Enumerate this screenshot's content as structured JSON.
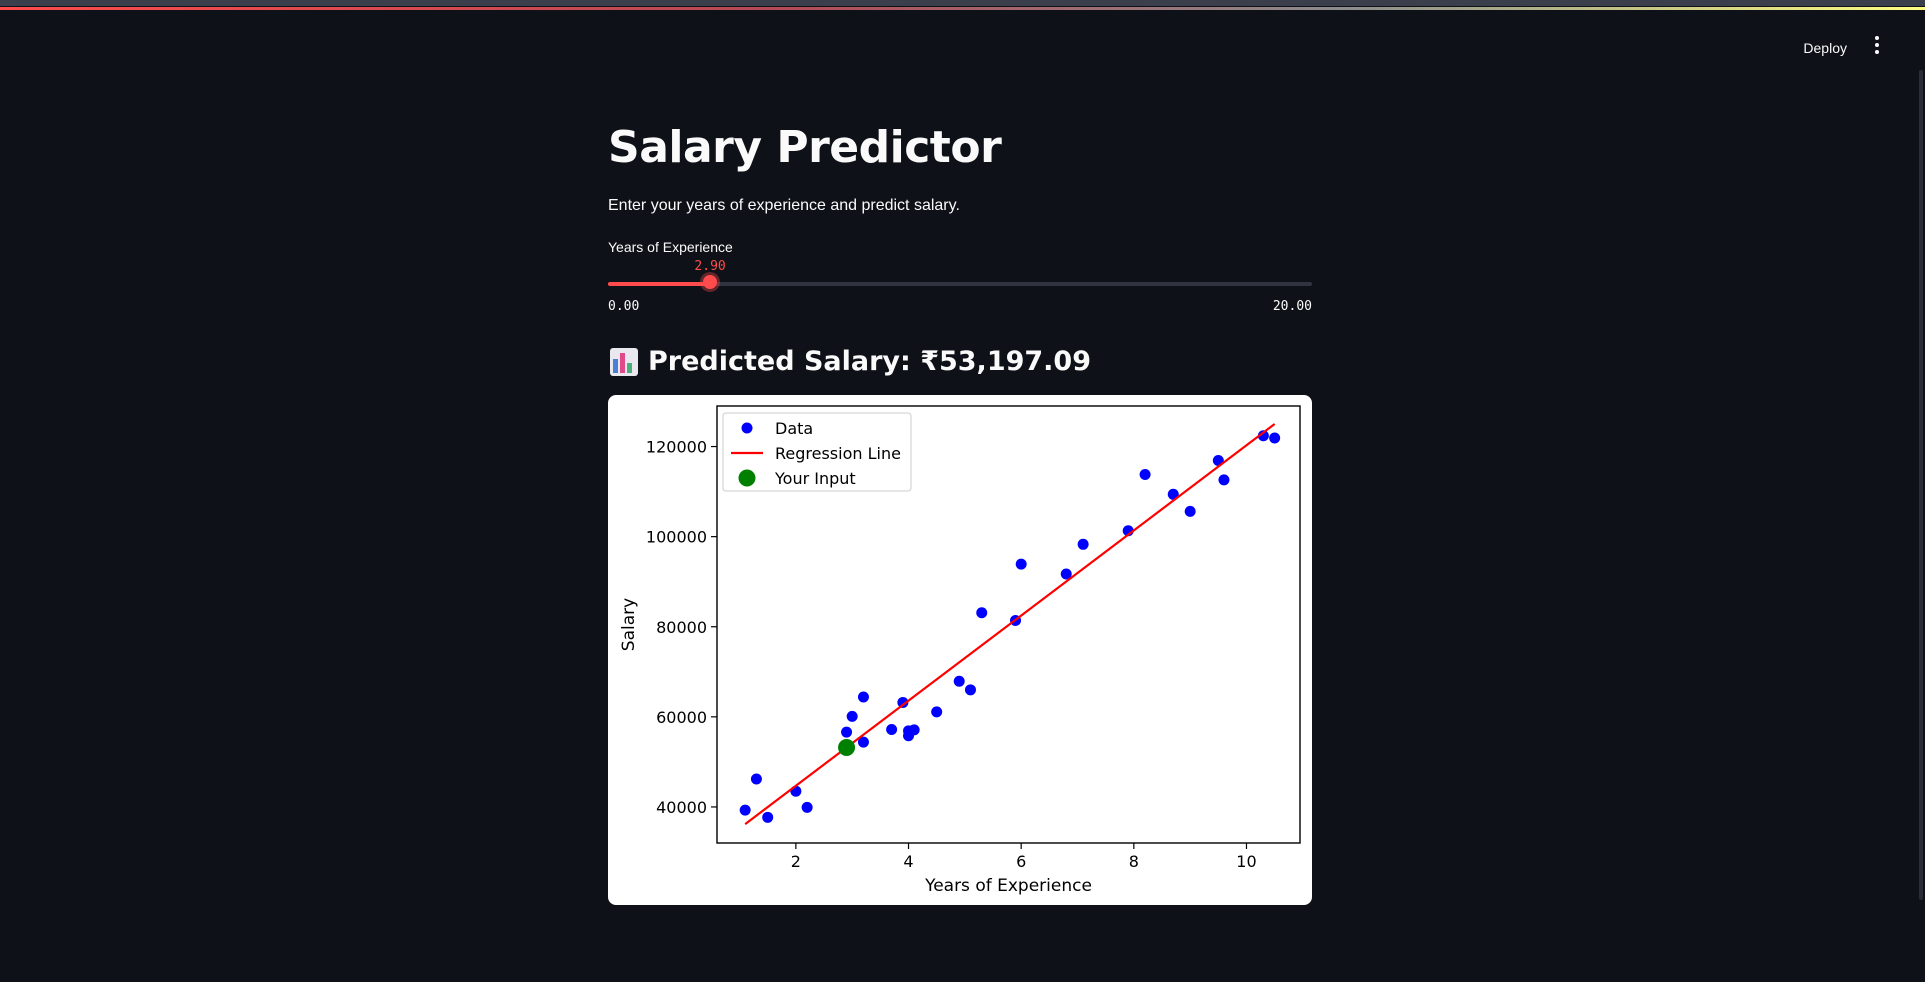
{
  "header": {
    "deploy_label": "Deploy",
    "menu_icon": "vertical-ellipsis-icon"
  },
  "main": {
    "title": "Salary Predictor",
    "subtitle": "Enter your years of experience and predict salary.",
    "slider": {
      "label": "Years of Experience",
      "value": 2.9,
      "value_label": "2.90",
      "min": 0,
      "max": 20,
      "min_label": "0.00",
      "max_label": "20.00",
      "accent": "#ff4b4b"
    },
    "prediction": {
      "icon": "bar-chart-icon",
      "text": "Predicted Salary: ₹53,197.09"
    }
  },
  "chart_data": {
    "type": "scatter",
    "title": "",
    "xlabel": "Years of Experience",
    "ylabel": "Salary",
    "xlim": [
      0.6,
      10.95
    ],
    "ylim": [
      32000,
      129000
    ],
    "x_ticks": [
      2,
      4,
      6,
      8,
      10
    ],
    "x_tick_labels": [
      "2",
      "4",
      "6",
      "8",
      "10"
    ],
    "y_ticks": [
      40000,
      60000,
      80000,
      100000,
      120000
    ],
    "y_tick_labels": [
      "40000",
      "60000",
      "80000",
      "100000",
      "120000"
    ],
    "grid": false,
    "legend": {
      "placement": "top-left",
      "entries": [
        "Data",
        "Regression Line",
        "Your Input"
      ]
    },
    "series": [
      {
        "name": "Data",
        "type": "scatter",
        "color": "#0000ff",
        "points": [
          [
            1.1,
            39300
          ],
          [
            1.3,
            46200
          ],
          [
            1.5,
            37700
          ],
          [
            2.0,
            43500
          ],
          [
            2.2,
            39900
          ],
          [
            2.9,
            56600
          ],
          [
            3.0,
            60100
          ],
          [
            3.2,
            54400
          ],
          [
            3.2,
            64400
          ],
          [
            3.7,
            57200
          ],
          [
            3.9,
            63200
          ],
          [
            4.0,
            55800
          ],
          [
            4.0,
            56900
          ],
          [
            4.1,
            57100
          ],
          [
            4.5,
            61100
          ],
          [
            4.9,
            67900
          ],
          [
            5.1,
            66000
          ],
          [
            5.3,
            83100
          ],
          [
            5.9,
            81400
          ],
          [
            6.0,
            93900
          ],
          [
            6.8,
            91700
          ],
          [
            7.1,
            98300
          ],
          [
            7.9,
            101300
          ],
          [
            8.2,
            113800
          ],
          [
            8.7,
            109400
          ],
          [
            9.0,
            105600
          ],
          [
            9.5,
            116900
          ],
          [
            9.6,
            112600
          ],
          [
            10.3,
            122400
          ],
          [
            10.5,
            121900
          ]
        ]
      },
      {
        "name": "Regression Line",
        "type": "line",
        "color": "#ff0000",
        "points": [
          [
            1.1,
            36200
          ],
          [
            10.5,
            125000
          ]
        ]
      },
      {
        "name": "Your Input",
        "type": "scatter",
        "color": "#008000",
        "points": [
          [
            2.9,
            53197.09
          ]
        ]
      }
    ]
  }
}
